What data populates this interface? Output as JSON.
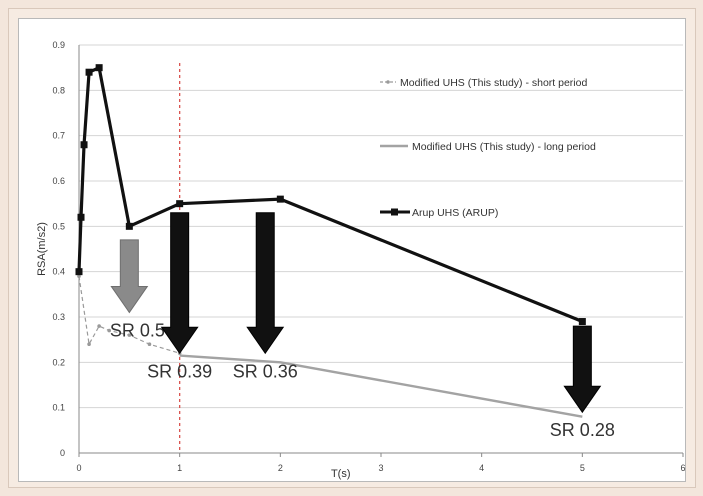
{
  "chart_data": {
    "type": "line",
    "xlabel": "T(s)",
    "ylabel": "RSA(m/s2)",
    "xlim": [
      0,
      6
    ],
    "ylim": [
      0,
      0.9
    ],
    "x_ticks": [
      "0",
      "1",
      "2",
      "3",
      "4",
      "5",
      "6"
    ],
    "y_ticks": [
      "0",
      "0.1",
      "0.2",
      "0.3",
      "0.4",
      "0.5",
      "0.6",
      "0.7",
      "0.8",
      "0.9"
    ],
    "grid": true,
    "legend_position": "right",
    "reference_line_x": 1,
    "series": [
      {
        "name": "Modified UHS (This study) - short period",
        "color": "#9a9a9a",
        "style": "dashed-markers",
        "x": [
          0,
          0.1,
          0.2,
          0.3,
          0.5,
          0.7,
          1
        ],
        "y": [
          0.39,
          0.24,
          0.28,
          0.27,
          0.26,
          0.24,
          0.22
        ]
      },
      {
        "name": "Modified UHS (This study) - long period",
        "color": "#a3a3a3",
        "style": "solid",
        "x": [
          1,
          2,
          5
        ],
        "y": [
          0.215,
          0.2,
          0.08
        ]
      },
      {
        "name": "Arup UHS (ARUP)",
        "color": "#111111",
        "style": "solid-markers",
        "x": [
          0,
          0.02,
          0.05,
          0.1,
          0.2,
          0.5,
          1,
          2,
          5
        ],
        "y": [
          0.4,
          0.52,
          0.68,
          0.84,
          0.85,
          0.5,
          0.55,
          0.56,
          0.29
        ]
      }
    ],
    "annotations": [
      {
        "text": "SR 0.5",
        "x": 0.5,
        "arrow_top": 0.47,
        "arrow_bottom": 0.31,
        "arrow_color": "#8a8a8a"
      },
      {
        "text": "SR 0.39",
        "x": 1,
        "arrow_top": 0.53,
        "arrow_bottom": 0.22,
        "arrow_color": "#111111"
      },
      {
        "text": "SR 0.36",
        "x": 1.85,
        "arrow_top": 0.53,
        "arrow_bottom": 0.22,
        "arrow_color": "#111111"
      },
      {
        "text": "SR 0.28",
        "x": 5,
        "arrow_top": 0.28,
        "arrow_bottom": 0.09,
        "arrow_color": "#111111"
      }
    ]
  }
}
